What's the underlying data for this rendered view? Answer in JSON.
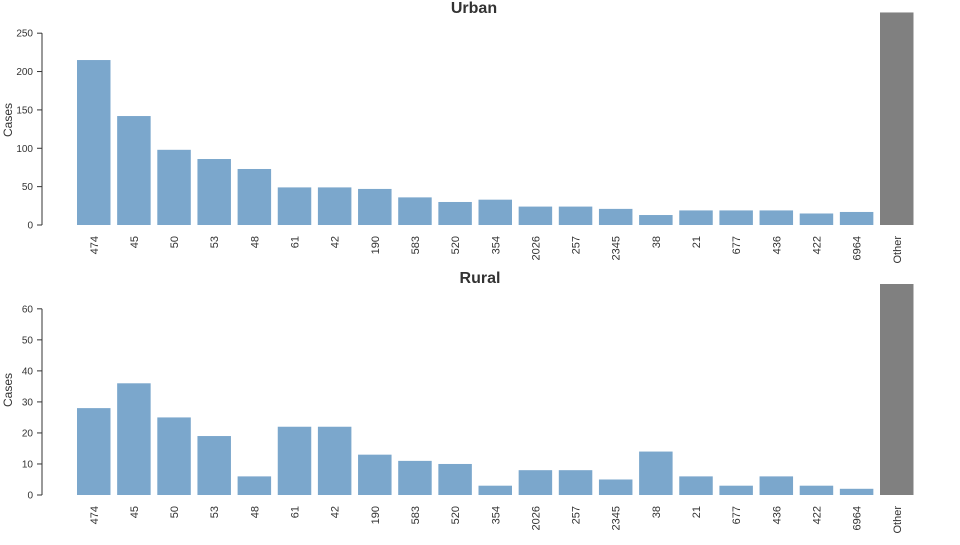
{
  "colors": {
    "bar": "#7ba7cc",
    "other": "#808080",
    "axis": "#333333"
  },
  "chart_data": [
    {
      "type": "bar",
      "title": "Urban",
      "xlabel": "",
      "ylabel": "Cases",
      "ylim": [
        0,
        275
      ],
      "yticks": [
        0,
        50,
        100,
        150,
        200,
        250
      ],
      "categories": [
        "474",
        "45",
        "50",
        "53",
        "48",
        "61",
        "42",
        "190",
        "583",
        "520",
        "354",
        "2026",
        "257",
        "2345",
        "38",
        "21",
        "677",
        "436",
        "422",
        "6964",
        "Other"
      ],
      "values": [
        215,
        142,
        98,
        86,
        73,
        49,
        49,
        47,
        36,
        30,
        33,
        24,
        24,
        21,
        13,
        19,
        19,
        19,
        15,
        17,
        277
      ],
      "grid": false,
      "legend": "none"
    },
    {
      "type": "bar",
      "title": "Rural",
      "xlabel": "",
      "ylabel": "Cases",
      "ylim": [
        0,
        68
      ],
      "yticks": [
        0,
        10,
        20,
        30,
        40,
        50,
        60
      ],
      "categories": [
        "474",
        "45",
        "50",
        "53",
        "48",
        "61",
        "42",
        "190",
        "583",
        "520",
        "354",
        "2026",
        "257",
        "2345",
        "38",
        "21",
        "677",
        "436",
        "422",
        "6964",
        "Other"
      ],
      "values": [
        28,
        36,
        25,
        19,
        6,
        22,
        22,
        13,
        11,
        10,
        3,
        8,
        8,
        5,
        14,
        6,
        3,
        6,
        3,
        2,
        68
      ],
      "grid": false,
      "legend": "none"
    }
  ]
}
